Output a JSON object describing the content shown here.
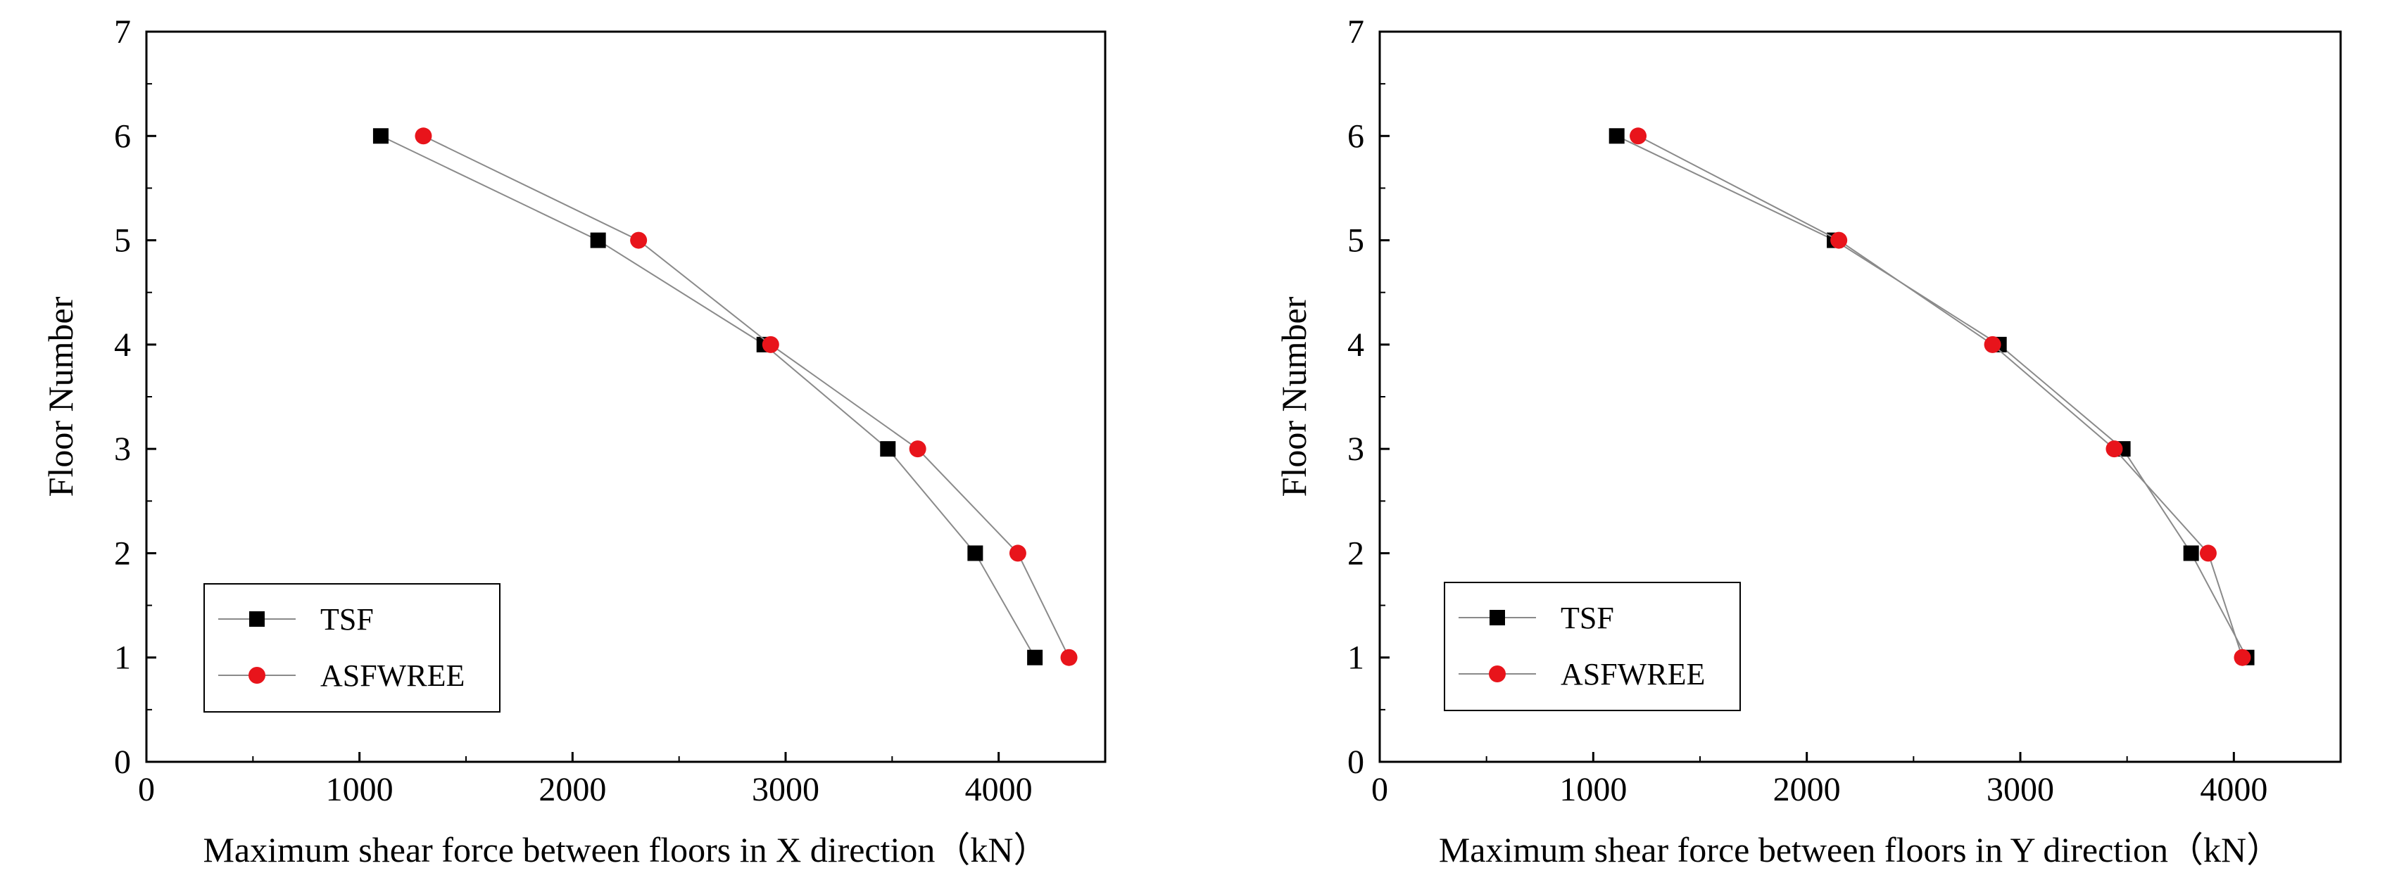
{
  "chart_data": [
    {
      "type": "line",
      "title": "",
      "xlabel": "Maximum shear force between floors in X direction（kN）",
      "ylabel": "Floor Number",
      "xlim": [
        0,
        4500
      ],
      "ylim": [
        0,
        7
      ],
      "xticks": [
        0,
        1000,
        2000,
        3000,
        4000
      ],
      "yticks": [
        0,
        1,
        2,
        3,
        4,
        5,
        6,
        7
      ],
      "grid": false,
      "legend_position": "bottom-left",
      "series": [
        {
          "name": "TSF",
          "marker": "square",
          "color": "#000000",
          "x": [
            4170,
            3890,
            3480,
            2900,
            2120,
            1100
          ],
          "y": [
            1,
            2,
            3,
            4,
            5,
            6
          ]
        },
        {
          "name": "ASFWREE",
          "marker": "circle",
          "color": "#e8141b",
          "x": [
            4330,
            4090,
            3620,
            2930,
            2310,
            1300
          ],
          "y": [
            1,
            2,
            3,
            4,
            5,
            6
          ]
        }
      ]
    },
    {
      "type": "line",
      "title": "",
      "xlabel": "Maximum shear force between floors in Y direction（kN）",
      "ylabel": "Floor Number",
      "xlim": [
        0,
        4500
      ],
      "ylim": [
        0,
        7
      ],
      "xticks": [
        0,
        1000,
        2000,
        3000,
        4000
      ],
      "yticks": [
        0,
        1,
        2,
        3,
        4,
        5,
        6,
        7
      ],
      "grid": false,
      "legend_position": "bottom-left",
      "series": [
        {
          "name": "TSF",
          "marker": "square",
          "color": "#000000",
          "x": [
            4060,
            3800,
            3480,
            2900,
            2130,
            1110
          ],
          "y": [
            1,
            2,
            3,
            4,
            5,
            6
          ]
        },
        {
          "name": "ASFWREE",
          "marker": "circle",
          "color": "#e8141b",
          "x": [
            4040,
            3880,
            3440,
            2870,
            2150,
            1210
          ],
          "y": [
            1,
            2,
            3,
            4,
            5,
            6
          ]
        }
      ]
    }
  ]
}
